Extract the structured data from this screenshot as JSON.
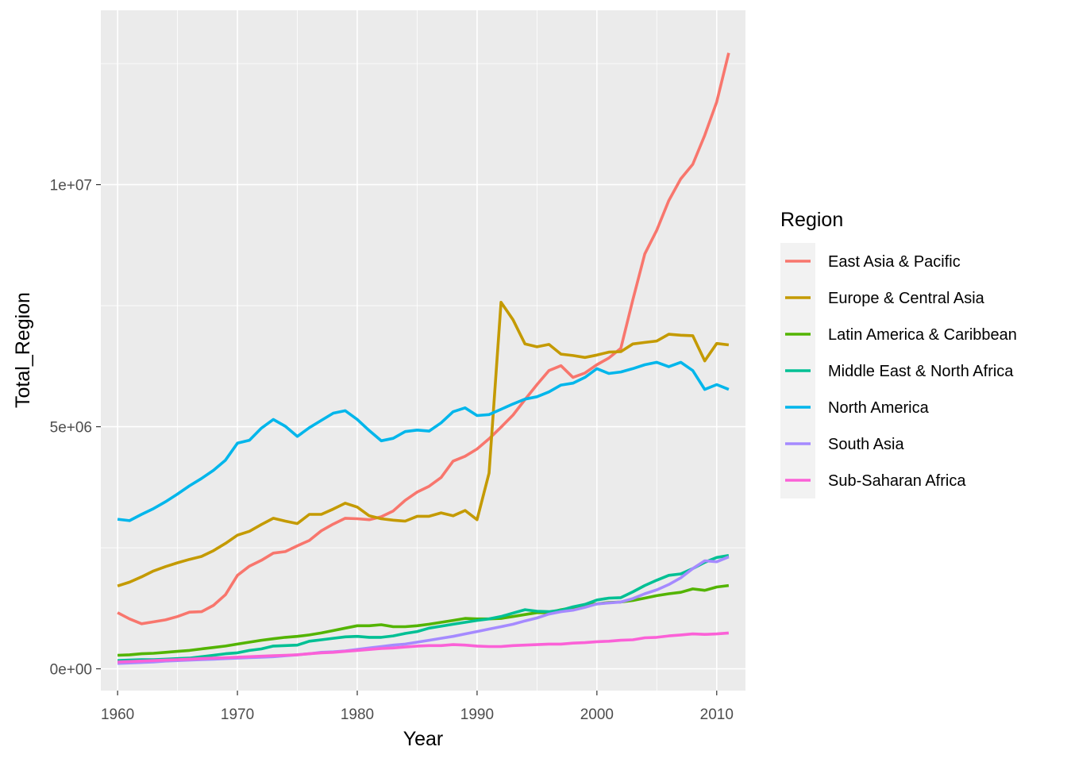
{
  "chart_data": {
    "type": "line",
    "xlabel": "Year",
    "ylabel": "Total_Region",
    "xlim": [
      1958.6,
      2012.4
    ],
    "ylim": [
      -450000,
      13600000
    ],
    "x_ticks": [
      1960,
      1970,
      1980,
      1990,
      2000,
      2010
    ],
    "x_tick_labels": [
      "1960",
      "1970",
      "1980",
      "1990",
      "2000",
      "2010"
    ],
    "y_ticks": [
      0,
      5000000,
      10000000
    ],
    "y_tick_labels": [
      "0e+00",
      "5e+06",
      "1e+07"
    ],
    "grid": true,
    "legend": {
      "title": "Region",
      "position": "right"
    },
    "x": [
      1960,
      1961,
      1962,
      1963,
      1964,
      1965,
      1966,
      1967,
      1968,
      1969,
      1970,
      1971,
      1972,
      1973,
      1974,
      1975,
      1976,
      1977,
      1978,
      1979,
      1980,
      1981,
      1982,
      1983,
      1984,
      1985,
      1986,
      1987,
      1988,
      1989,
      1990,
      1991,
      1992,
      1993,
      1994,
      1995,
      1996,
      1997,
      1998,
      1999,
      2000,
      2001,
      2002,
      2003,
      2004,
      2005,
      2006,
      2007,
      2008,
      2009,
      2010,
      2011
    ],
    "series": [
      {
        "name": "East Asia & Pacific",
        "color": "#F8766D",
        "values": [
          1160000,
          1030000,
          930000,
          970000,
          1010000,
          1080000,
          1170000,
          1180000,
          1310000,
          1530000,
          1930000,
          2120000,
          2240000,
          2390000,
          2420000,
          2540000,
          2650000,
          2850000,
          2990000,
          3110000,
          3100000,
          3080000,
          3140000,
          3260000,
          3480000,
          3650000,
          3770000,
          3950000,
          4290000,
          4390000,
          4540000,
          4750000,
          4990000,
          5240000,
          5560000,
          5870000,
          6160000,
          6260000,
          6020000,
          6110000,
          6280000,
          6420000,
          6620000,
          7620000,
          8570000,
          9060000,
          9670000,
          10120000,
          10420000,
          11020000,
          11710000,
          12720000
        ]
      },
      {
        "name": "Europe & Central Asia",
        "color": "#C49A00",
        "values": [
          1710000,
          1790000,
          1900000,
          2020000,
          2110000,
          2190000,
          2260000,
          2320000,
          2440000,
          2590000,
          2760000,
          2840000,
          2980000,
          3110000,
          3050000,
          3000000,
          3190000,
          3190000,
          3300000,
          3420000,
          3340000,
          3160000,
          3100000,
          3070000,
          3050000,
          3150000,
          3150000,
          3220000,
          3160000,
          3270000,
          3080000,
          4040000,
          7570000,
          7210000,
          6710000,
          6650000,
          6700000,
          6500000,
          6470000,
          6430000,
          6480000,
          6540000,
          6550000,
          6710000,
          6740000,
          6770000,
          6910000,
          6890000,
          6880000,
          6360000,
          6720000,
          6690000
        ]
      },
      {
        "name": "Latin America & Caribbean",
        "color": "#53B400",
        "values": [
          280000,
          290000,
          310000,
          320000,
          340000,
          360000,
          380000,
          410000,
          440000,
          470000,
          510000,
          550000,
          590000,
          620000,
          650000,
          670000,
          700000,
          740000,
          790000,
          840000,
          890000,
          890000,
          910000,
          870000,
          870000,
          890000,
          920000,
          960000,
          1000000,
          1040000,
          1030000,
          1030000,
          1040000,
          1080000,
          1120000,
          1160000,
          1160000,
          1220000,
          1260000,
          1320000,
          1340000,
          1370000,
          1380000,
          1410000,
          1460000,
          1510000,
          1550000,
          1580000,
          1650000,
          1620000,
          1690000,
          1720000
        ]
      },
      {
        "name": "Middle East & North Africa",
        "color": "#00C094",
        "values": [
          170000,
          180000,
          190000,
          190000,
          200000,
          210000,
          220000,
          250000,
          280000,
          310000,
          330000,
          380000,
          410000,
          470000,
          480000,
          490000,
          570000,
          600000,
          630000,
          660000,
          670000,
          650000,
          650000,
          680000,
          730000,
          770000,
          840000,
          880000,
          920000,
          960000,
          1000000,
          1030000,
          1080000,
          1150000,
          1220000,
          1190000,
          1180000,
          1210000,
          1280000,
          1330000,
          1420000,
          1460000,
          1470000,
          1590000,
          1720000,
          1830000,
          1930000,
          1960000,
          2070000,
          2200000,
          2300000,
          2340000
        ]
      },
      {
        "name": "North America",
        "color": "#00B6EB",
        "values": [
          3090000,
          3060000,
          3190000,
          3310000,
          3450000,
          3610000,
          3780000,
          3930000,
          4100000,
          4310000,
          4660000,
          4720000,
          4970000,
          5150000,
          5010000,
          4800000,
          4980000,
          5130000,
          5280000,
          5330000,
          5150000,
          4920000,
          4710000,
          4760000,
          4900000,
          4930000,
          4910000,
          5080000,
          5310000,
          5390000,
          5230000,
          5250000,
          5360000,
          5470000,
          5570000,
          5620000,
          5720000,
          5860000,
          5900000,
          6020000,
          6200000,
          6100000,
          6130000,
          6200000,
          6280000,
          6330000,
          6240000,
          6330000,
          6160000,
          5770000,
          5870000,
          5770000
        ]
      },
      {
        "name": "South Asia",
        "color": "#A58AFF",
        "values": [
          110000,
          120000,
          130000,
          140000,
          160000,
          170000,
          180000,
          190000,
          200000,
          210000,
          220000,
          230000,
          240000,
          250000,
          270000,
          290000,
          310000,
          340000,
          350000,
          370000,
          400000,
          430000,
          460000,
          490000,
          510000,
          550000,
          590000,
          630000,
          670000,
          720000,
          770000,
          820000,
          870000,
          920000,
          990000,
          1050000,
          1130000,
          1180000,
          1210000,
          1270000,
          1340000,
          1360000,
          1380000,
          1450000,
          1550000,
          1630000,
          1740000,
          1880000,
          2070000,
          2230000,
          2210000,
          2310000
        ]
      },
      {
        "name": "Sub-Saharan Africa",
        "color": "#FB61D7",
        "values": [
          140000,
          150000,
          160000,
          170000,
          180000,
          190000,
          200000,
          210000,
          220000,
          230000,
          240000,
          250000,
          260000,
          270000,
          280000,
          290000,
          310000,
          330000,
          340000,
          360000,
          380000,
          400000,
          420000,
          430000,
          450000,
          470000,
          480000,
          480000,
          500000,
          490000,
          470000,
          460000,
          460000,
          480000,
          490000,
          500000,
          510000,
          510000,
          530000,
          540000,
          560000,
          570000,
          590000,
          600000,
          640000,
          650000,
          680000,
          700000,
          720000,
          710000,
          720000,
          740000
        ]
      }
    ]
  }
}
